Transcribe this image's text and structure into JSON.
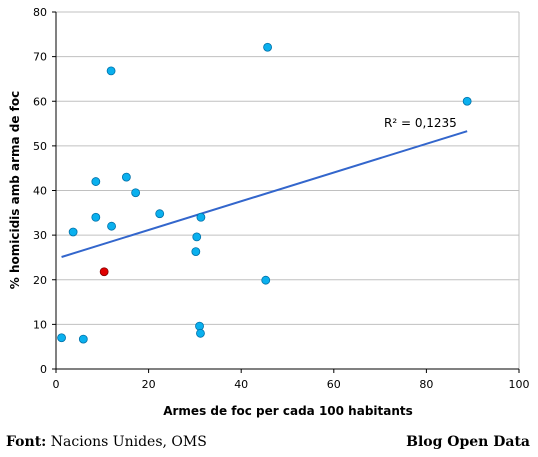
{
  "chart_data": {
    "type": "scatter",
    "xlabel": "Armes de foc per cada 100 habitants",
    "ylabel": "% homicidis amb arma de foc",
    "xlim": [
      0,
      100
    ],
    "ylim": [
      0,
      80
    ],
    "x_ticks": [
      0,
      20,
      40,
      60,
      80,
      100
    ],
    "y_ticks": [
      0,
      10,
      20,
      30,
      40,
      50,
      60,
      70,
      80
    ],
    "grid": "horizontal",
    "points": [
      {
        "x": 1.2,
        "y": 7.0
      },
      {
        "x": 3.7,
        "y": 30.7
      },
      {
        "x": 5.9,
        "y": 6.7
      },
      {
        "x": 8.6,
        "y": 34.0
      },
      {
        "x": 8.6,
        "y": 42.0
      },
      {
        "x": 10.4,
        "y": 21.8,
        "highlight": true
      },
      {
        "x": 11.9,
        "y": 66.8
      },
      {
        "x": 12.0,
        "y": 32.0
      },
      {
        "x": 15.2,
        "y": 43.0
      },
      {
        "x": 17.2,
        "y": 39.5
      },
      {
        "x": 22.4,
        "y": 34.8
      },
      {
        "x": 30.2,
        "y": 26.3
      },
      {
        "x": 30.4,
        "y": 29.6
      },
      {
        "x": 31.0,
        "y": 9.6
      },
      {
        "x": 31.2,
        "y": 8.0
      },
      {
        "x": 31.3,
        "y": 34.0
      },
      {
        "x": 45.3,
        "y": 19.9
      },
      {
        "x": 45.7,
        "y": 72.1
      },
      {
        "x": 88.8,
        "y": 60.0
      }
    ],
    "trendline": {
      "x": [
        1.2,
        88.8
      ],
      "y": [
        25.1,
        53.3
      ]
    },
    "annotation": "R² = 0,1235",
    "colors": {
      "point": "#0ab0ee",
      "highlight": "#e00000",
      "trendline": "#3366cc",
      "grid": "#c0c0c0"
    }
  },
  "footer": {
    "source_label": "Font:",
    "source_value": "Nacions Unides, OMS",
    "credit": "Blog Open Data"
  }
}
